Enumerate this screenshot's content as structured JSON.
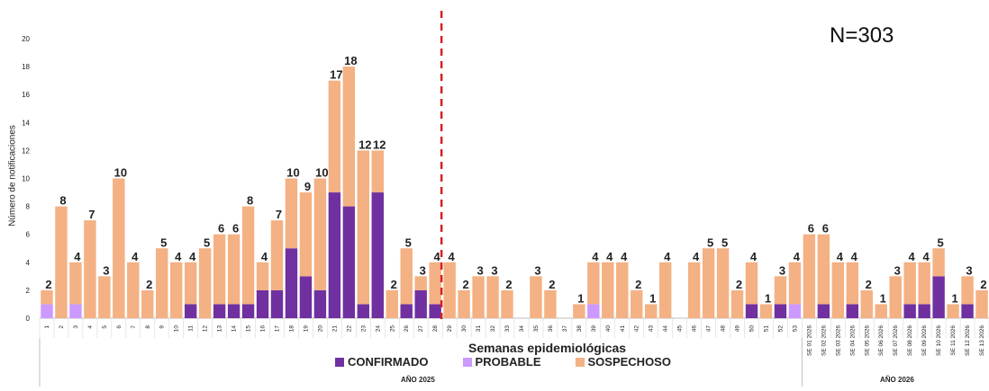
{
  "chart_data": {
    "type": "bar",
    "stacked": true,
    "title": "",
    "annotation": "N=303",
    "xlabel": "Semanas epidemiológicas",
    "ylabel": "Número de notificaciones",
    "ylim": [
      0,
      20
    ],
    "yticks": [
      0,
      2,
      4,
      6,
      8,
      10,
      12,
      14,
      16,
      18,
      20
    ],
    "grid": false,
    "legend_position": "bottom",
    "divider_after_category": "28",
    "categories": [
      "1",
      "2",
      "3",
      "4",
      "5",
      "6",
      "7",
      "8",
      "9",
      "10",
      "11",
      "12",
      "13",
      "14",
      "15",
      "16",
      "17",
      "18",
      "19",
      "20",
      "21",
      "22",
      "23",
      "24",
      "25",
      "26",
      "27",
      "28",
      "29",
      "30",
      "31",
      "32",
      "33",
      "34",
      "35",
      "36",
      "37",
      "38",
      "39",
      "40",
      "41",
      "42",
      "43",
      "44",
      "45",
      "46",
      "47",
      "48",
      "49",
      "50",
      "51",
      "52",
      "53",
      "SE 01 2026",
      "SE 02 2026",
      "SE 03 2026",
      "SE 04 2026",
      "SE 05 2026",
      "SE 06 2026",
      "SE 07 2026",
      "SE 08 2026",
      "SE 09 2026",
      "SE 10 2026",
      "SE 11 2026",
      "SE 12 2026",
      "SE 13 2026"
    ],
    "series": [
      {
        "name": "CONFIRMADO",
        "color": "#7030a0",
        "values": [
          0,
          0,
          0,
          0,
          0,
          0,
          0,
          0,
          0,
          0,
          1,
          0,
          1,
          1,
          1,
          2,
          2,
          5,
          3,
          2,
          9,
          8,
          1,
          9,
          0,
          1,
          2,
          1,
          0,
          0,
          0,
          0,
          0,
          0,
          0,
          0,
          0,
          0,
          0,
          0,
          0,
          0,
          0,
          0,
          0,
          0,
          0,
          0,
          0,
          1,
          0,
          1,
          0,
          0,
          1,
          0,
          1,
          0,
          0,
          0,
          1,
          1,
          3,
          0,
          1,
          0
        ]
      },
      {
        "name": "PROBABLE",
        "color": "#cc99ff",
        "values": [
          1,
          0,
          1,
          0,
          0,
          0,
          0,
          0,
          0,
          0,
          0,
          0,
          0,
          0,
          0,
          0,
          0,
          0,
          0,
          0,
          0,
          0,
          0,
          0,
          0,
          0,
          0,
          0,
          0,
          0,
          0,
          0,
          0,
          0,
          0,
          0,
          0,
          0,
          1,
          0,
          0,
          0,
          0,
          0,
          0,
          0,
          0,
          0,
          0,
          0,
          0,
          0,
          1,
          0,
          0,
          0,
          0,
          0,
          0,
          0,
          0,
          0,
          0,
          0,
          0,
          0
        ]
      },
      {
        "name": "SOSPECHOSO",
        "color": "#f4b183",
        "values": [
          1,
          8,
          3,
          7,
          3,
          10,
          4,
          2,
          5,
          4,
          3,
          5,
          5,
          5,
          7,
          2,
          5,
          5,
          6,
          8,
          8,
          10,
          11,
          3,
          2,
          4,
          1,
          3,
          4,
          2,
          3,
          3,
          2,
          0,
          3,
          2,
          0,
          1,
          3,
          4,
          4,
          2,
          1,
          4,
          0,
          4,
          5,
          5,
          2,
          3,
          1,
          2,
          3,
          6,
          5,
          4,
          3,
          2,
          1,
          3,
          3,
          3,
          2,
          1,
          2,
          2
        ]
      }
    ],
    "totals_labels": [
      "2",
      "8",
      "4",
      "7",
      "3",
      "10",
      "4",
      "2",
      "5",
      "4",
      "4",
      "5",
      "6",
      "6",
      "8",
      "4",
      "7",
      "10",
      "9",
      "10",
      "17",
      "18",
      "12",
      "12",
      "2",
      "5",
      "3",
      "4",
      "4",
      "2",
      "3",
      "3",
      "2",
      "",
      "3",
      "2",
      "",
      "1",
      "4",
      "4",
      "4",
      "2",
      "1",
      "4",
      "",
      "4",
      "5",
      "5",
      "2",
      "4",
      "1",
      "3",
      "4",
      "6",
      "6",
      "4",
      "4",
      "2",
      "1",
      "3",
      "4",
      "4",
      "5",
      "1",
      "3",
      "2"
    ],
    "groups": [
      {
        "label": "AÑO 2025"
      },
      {
        "label": "AÑO 2026"
      }
    ]
  }
}
